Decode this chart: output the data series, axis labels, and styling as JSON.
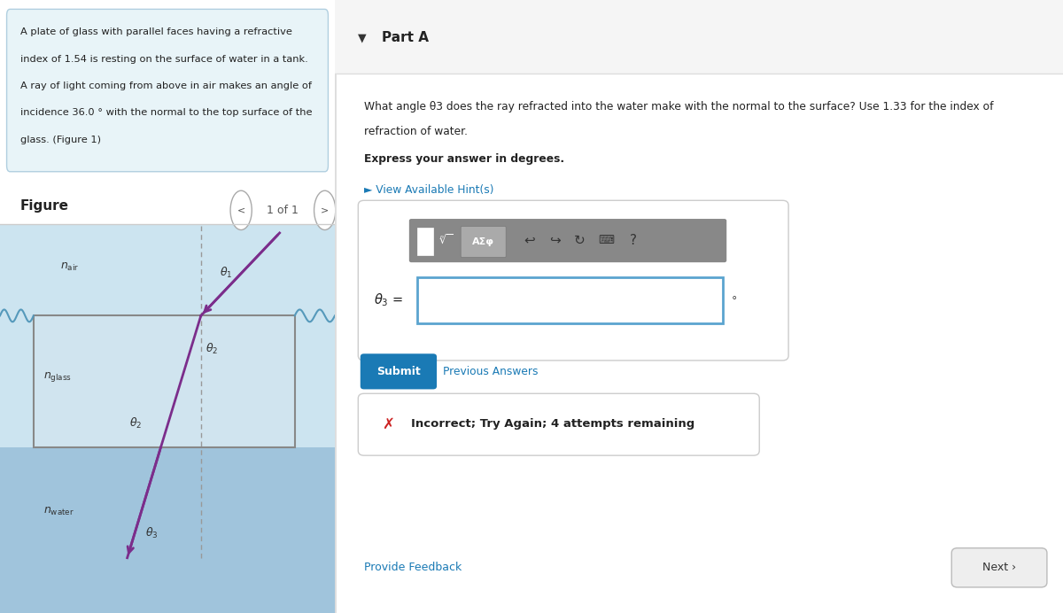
{
  "left_panel_bg": "#e8f4f8",
  "left_panel_text_lines": [
    "A plate of glass with parallel faces having a refractive",
    "index of 1.54 is resting on the surface of water in a tank.",
    "A ray of light coming from above in air makes an angle of",
    "incidence 36.0 ° with the normal to the top surface of the",
    "glass. (Figure 1)"
  ],
  "figure_label": "Figure",
  "figure_nav": "1 of 1",
  "ray_color": "#7b2d8b",
  "right_panel_bg": "#ffffff",
  "part_a_label": "Part A",
  "question_line1": "What angle θ3 does the ray refracted into the water make with the normal to the surface? Use 1.33 for the index of",
  "question_line2": "refraction of water.",
  "bold_text": "Express your answer in degrees.",
  "hint_text": "► View Available Hint(s)",
  "hint_color": "#1a7ab5",
  "submit_label": "Submit",
  "submit_bg": "#1a7ab5",
  "prev_ans_label": "Previous Answers",
  "prev_ans_color": "#1a7ab5",
  "incorrect_text": "Incorrect; Try Again; 4 attempts remaining",
  "feedback_label": "Provide Feedback",
  "feedback_color": "#1a7ab5",
  "next_label": "Next ›",
  "divider_color": "#cccccc",
  "input_border_color": "#5ba4cf",
  "toolbar_bg": "#888888",
  "air_bg": "#cce4f0",
  "water_bg": "#a0c4dc",
  "glass_bg": "#d0e4ef",
  "glass_border": "#888888",
  "wave_color": "#5599bb",
  "normal_color": "#999999"
}
